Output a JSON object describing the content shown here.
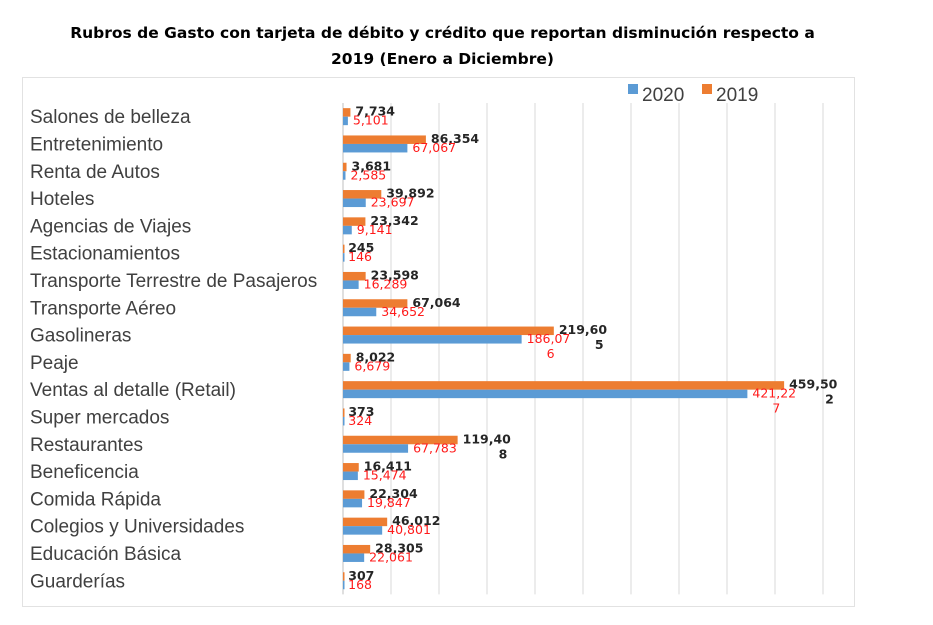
{
  "title_line1": "Rubros de Gasto con tarjeta de débito y crédito que reportan disminución respecto a",
  "title_line2": "2019 (Enero a Diciembre)",
  "colors": {
    "series_2020": "#5b9bd5",
    "series_2019": "#ed7d31",
    "label_2020": "#262626",
    "label_2019": "#ff1a1a",
    "grid": "#d9d9d9"
  },
  "chart_data": {
    "type": "bar",
    "orientation": "horizontal",
    "title": "Rubros de Gasto con tarjeta de débito y crédito que reportan disminución respecto a 2019 (Enero a Diciembre)",
    "categories": [
      "Salones de belleza",
      "Entretenimiento",
      "Renta de Autos",
      "Hoteles",
      "Agencias de Viajes",
      "Estacionamientos",
      "Transporte Terrestre de Pasajeros",
      "Transporte Aéreo",
      "Gasolineras",
      "Peaje",
      "Ventas al detalle (Retail)",
      "Super mercados",
      "Restaurantes",
      "Beneficencia",
      "Comida Rápida",
      "Colegios y Universidades",
      "Educación Básica",
      "Guarderías"
    ],
    "series": [
      {
        "name": "2020",
        "values": [
          5101,
          67067,
          2585,
          23697,
          9141,
          146,
          16289,
          34652,
          186076,
          6679,
          421227,
          324,
          67783,
          15474,
          19847,
          40801,
          22061,
          168
        ],
        "labels": [
          "5,101",
          "67,067",
          "2,585",
          "23,697",
          "9,141",
          "146",
          "16,289",
          "34,652",
          "186,07\n6",
          "6,679",
          "421,22\n7",
          "324",
          "67,783",
          "15,474",
          "19,847",
          "40,801",
          "22,061",
          "168"
        ]
      },
      {
        "name": "2019",
        "values": [
          7734,
          86354,
          3681,
          39892,
          23342,
          245,
          23598,
          67064,
          219605,
          8022,
          459502,
          373,
          119408,
          16411,
          22304,
          46012,
          28305,
          307
        ],
        "labels": [
          "7,734",
          "86,354",
          "3,681",
          "39,892",
          "23,342",
          "245",
          "23,598",
          "67,064",
          "219,60\n5",
          "8,022",
          "459,50\n2",
          "373",
          "119,40\n8",
          "16,411",
          "22,304",
          "46,012",
          "28,305",
          "307"
        ]
      }
    ],
    "xlim": [
      0,
      500000
    ],
    "grid": true,
    "legend": "top-right"
  }
}
